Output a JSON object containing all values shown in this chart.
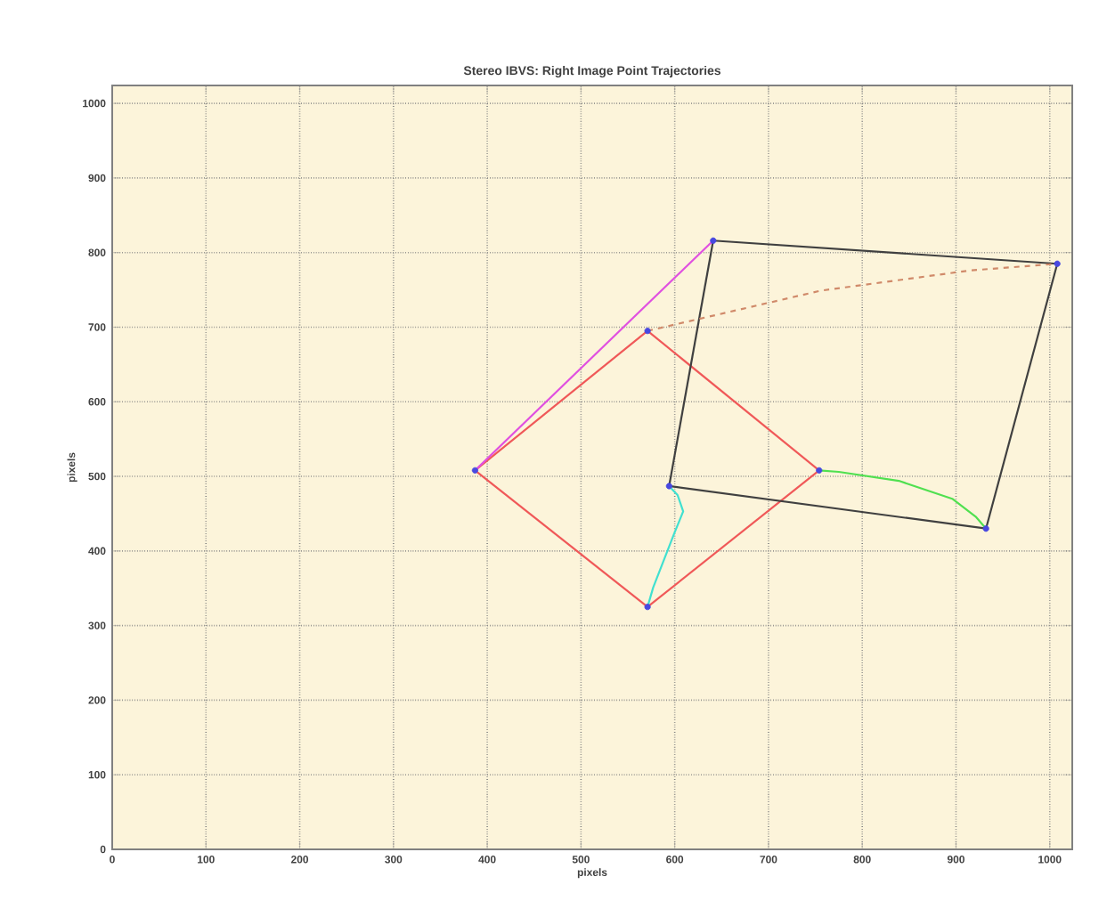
{
  "chart_data": {
    "type": "line",
    "title": "Stereo IBVS: Right Image Point Trajectories",
    "xlabel": "pixels",
    "ylabel": "pixels",
    "xlim": [
      0,
      1024
    ],
    "ylim": [
      0,
      1024
    ],
    "xticks": [
      0,
      100,
      200,
      300,
      400,
      500,
      600,
      700,
      800,
      900,
      1000
    ],
    "yticks": [
      0,
      100,
      200,
      300,
      400,
      500,
      600,
      700,
      800,
      900,
      1000
    ],
    "grid": true,
    "series": [
      {
        "color": "#f05858",
        "x": [
          387,
          571
        ],
        "values": [
          508,
          695
        ]
      },
      {
        "color": "#f05858",
        "x": [
          571,
          754
        ],
        "values": [
          695,
          508
        ]
      },
      {
        "color": "#f05858",
        "x": [
          571,
          754
        ],
        "values": [
          325,
          508
        ]
      },
      {
        "color": "#f05858",
        "x": [
          387,
          571
        ],
        "values": [
          508,
          325
        ]
      },
      {
        "color": "#404040",
        "x": [
          641,
          1008
        ],
        "values": [
          816,
          785
        ]
      },
      {
        "color": "#404040",
        "x": [
          932,
          1008
        ],
        "values": [
          430,
          785
        ]
      },
      {
        "color": "#404040",
        "x": [
          594,
          932
        ],
        "values": [
          487,
          430
        ]
      },
      {
        "color": "#404040",
        "x": [
          594,
          641
        ],
        "values": [
          487,
          816
        ]
      },
      {
        "color": "#e050e0",
        "x": [
          387,
          641
        ],
        "values": [
          508,
          816
        ]
      },
      {
        "color": "#d08a6a",
        "line_style": "dashed",
        "x": [
          571,
          756,
          915,
          1008
        ],
        "values": [
          695,
          749,
          776,
          785
        ]
      },
      {
        "color": "#50e050",
        "x": [
          754,
          775,
          839,
          896,
          921,
          932
        ],
        "values": [
          508,
          506,
          494,
          470,
          446,
          430
        ]
      },
      {
        "color": "#40e0d0",
        "x": [
          571,
          577,
          599,
          609,
          603,
          594
        ],
        "values": [
          325,
          351,
          422,
          453,
          475,
          487
        ]
      },
      {
        "type": "scatter",
        "color": "#4848e0",
        "marker": "circle",
        "x": [
          387,
          571,
          754,
          571,
          641,
          1008,
          932,
          594
        ],
        "values": [
          508,
          695,
          508,
          325,
          816,
          785,
          430,
          487
        ]
      }
    ]
  }
}
